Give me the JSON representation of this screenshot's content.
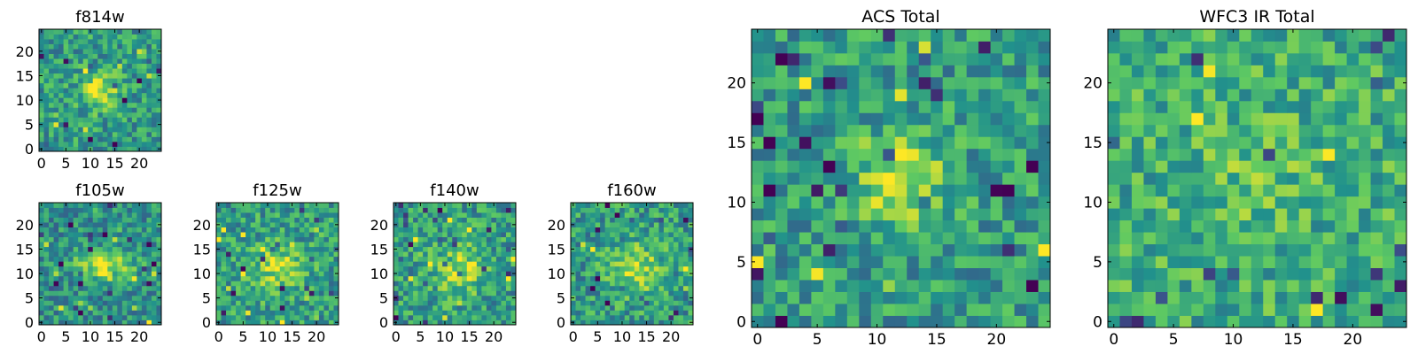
{
  "chart_data": [
    {
      "type": "heatmap",
      "title": "f814w",
      "grid": [
        25,
        25
      ],
      "xticks": [
        0,
        5,
        10,
        15,
        20
      ],
      "yticks": [
        0,
        5,
        10,
        15,
        20
      ],
      "xlim": [
        -0.5,
        24.5
      ],
      "ylim": [
        -0.5,
        24.5
      ],
      "colormap": "viridis",
      "source_center": [
        12,
        12
      ],
      "source_extent": "compact",
      "seed": 11
    },
    {
      "type": "heatmap",
      "title": "f105w",
      "grid": [
        25,
        25
      ],
      "xticks": [
        0,
        5,
        10,
        15,
        20
      ],
      "yticks": [
        0,
        5,
        10,
        15,
        20
      ],
      "xlim": [
        -0.5,
        24.5
      ],
      "ylim": [
        -0.5,
        24.5
      ],
      "colormap": "viridis",
      "source_center": [
        13,
        12
      ],
      "source_extent": "elongated",
      "seed": 23
    },
    {
      "type": "heatmap",
      "title": "f125w",
      "grid": [
        25,
        25
      ],
      "xticks": [
        0,
        5,
        10,
        15,
        20
      ],
      "yticks": [
        0,
        5,
        10,
        15,
        20
      ],
      "xlim": [
        -0.5,
        24.5
      ],
      "ylim": [
        -0.5,
        24.5
      ],
      "colormap": "viridis",
      "source_center": [
        12,
        11
      ],
      "source_extent": "extended",
      "seed": 37
    },
    {
      "type": "heatmap",
      "title": "f140w",
      "grid": [
        25,
        25
      ],
      "xticks": [
        0,
        5,
        10,
        15,
        20
      ],
      "yticks": [
        0,
        5,
        10,
        15,
        20
      ],
      "xlim": [
        -0.5,
        24.5
      ],
      "ylim": [
        -0.5,
        24.5
      ],
      "colormap": "viridis",
      "source_center": [
        13,
        11
      ],
      "source_extent": "extended",
      "seed": 41
    },
    {
      "type": "heatmap",
      "title": "f160w",
      "grid": [
        25,
        25
      ],
      "xticks": [
        0,
        5,
        10,
        15,
        20
      ],
      "yticks": [
        0,
        5,
        10,
        15,
        20
      ],
      "xlim": [
        -0.5,
        24.5
      ],
      "ylim": [
        -0.5,
        24.5
      ],
      "colormap": "viridis",
      "source_center": [
        13,
        11
      ],
      "source_extent": "extended",
      "seed": 53
    },
    {
      "type": "heatmap",
      "title": "ACS Total",
      "grid": [
        25,
        25
      ],
      "xticks": [
        0,
        5,
        10,
        15,
        20
      ],
      "yticks": [
        0,
        5,
        10,
        15,
        20
      ],
      "xlim": [
        -0.5,
        24.5
      ],
      "ylim": [
        -0.5,
        24.5
      ],
      "colormap": "viridis",
      "source_center": [
        12,
        12
      ],
      "source_extent": "compact",
      "seed": 67
    },
    {
      "type": "heatmap",
      "title": "WFC3 IR Total",
      "grid": [
        25,
        25
      ],
      "xticks": [
        0,
        5,
        10,
        15,
        20
      ],
      "yticks": [
        0,
        5,
        10,
        15,
        20
      ],
      "xlim": [
        -0.5,
        24.5
      ],
      "ylim": [
        -0.5,
        24.5
      ],
      "colormap": "viridis",
      "source_center": [
        12,
        12
      ],
      "source_extent": "faint",
      "seed": 79
    }
  ],
  "colors": {
    "viridis": [
      "#440154",
      "#3b528b",
      "#21918c",
      "#5ec962",
      "#fde725"
    ]
  }
}
